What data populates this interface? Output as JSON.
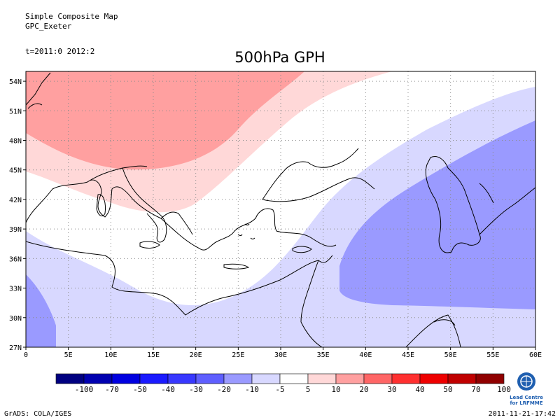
{
  "header": {
    "line1": "Simple Composite Map",
    "line2": "GPC_Exeter",
    "time": "t=2011:0  2012:2"
  },
  "title": "500hPa GPH",
  "map": {
    "lon_labels": [
      "0",
      "5E",
      "10E",
      "15E",
      "20E",
      "25E",
      "30E",
      "35E",
      "40E",
      "45E",
      "50E",
      "55E",
      "60E"
    ],
    "lat_labels": [
      "27N",
      "30N",
      "33N",
      "36N",
      "39N",
      "42N",
      "45N",
      "48N",
      "51N",
      "54N"
    ],
    "lon_range": [
      0,
      60
    ],
    "lat_range": [
      27,
      55
    ],
    "region": "Mediterranean / Near East"
  },
  "colorbar": {
    "labels": [
      "-100",
      "-70",
      "-50",
      "-40",
      "-30",
      "-20",
      "-10",
      "-5",
      "5",
      "10",
      "20",
      "30",
      "40",
      "50",
      "70",
      "100"
    ],
    "colors": [
      "#000080",
      "#0000b0",
      "#0000e0",
      "#1a1aff",
      "#3838ff",
      "#5f5fff",
      "#9a9aff",
      "#d8d8ff",
      "#ffffff",
      "#ffd8d8",
      "#ffa0a0",
      "#ff6666",
      "#ff3030",
      "#ee0000",
      "#c00000",
      "#900000"
    ]
  },
  "logo": {
    "line1": "Lead Centre",
    "line2": "for LRFMME"
  },
  "footer": {
    "left": "GrADS: COLA/IGES",
    "right": "2011-11-21-17:42"
  }
}
